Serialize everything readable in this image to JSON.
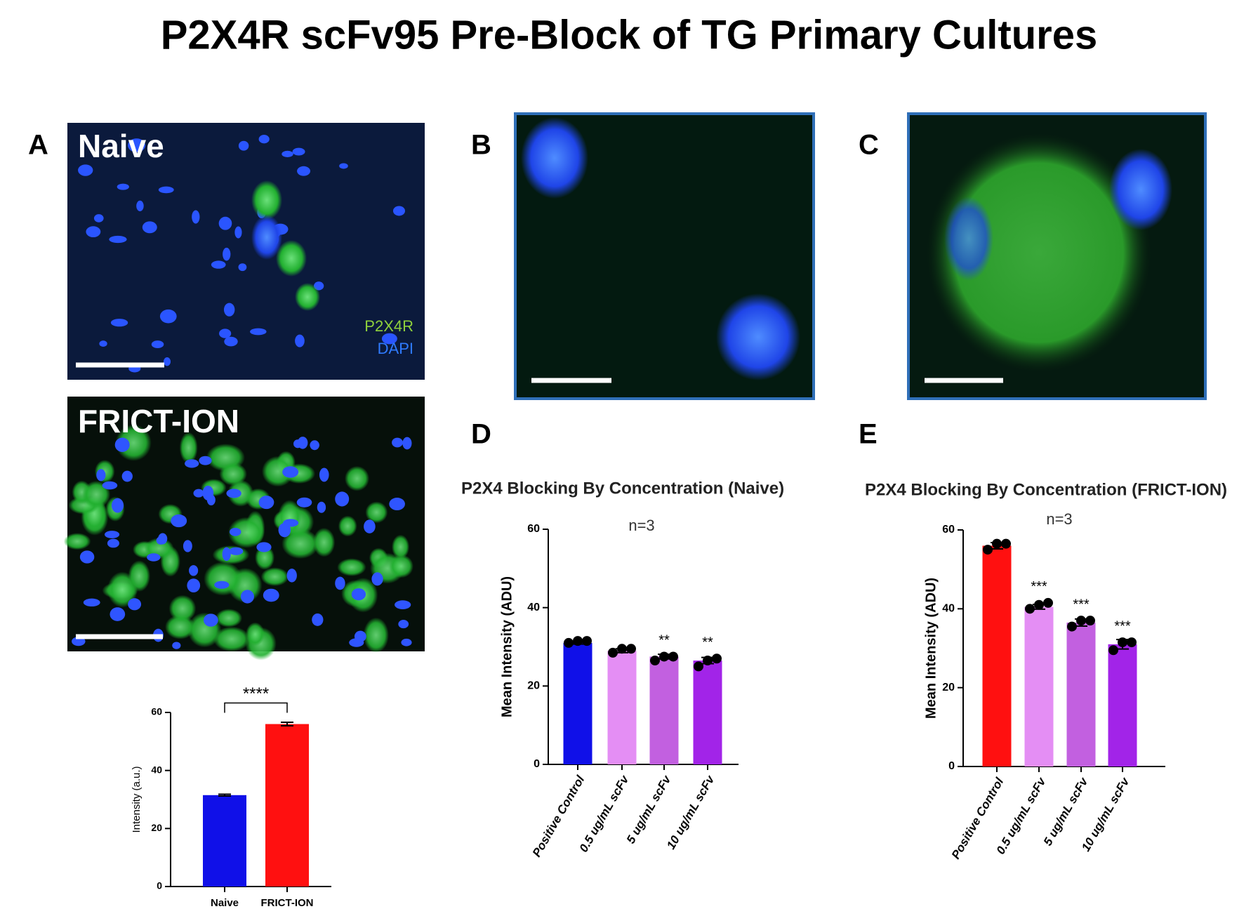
{
  "title": "P2X4R scFv95 Pre-Block of TG Primary Cultures",
  "panel_labels": [
    "A",
    "B",
    "C",
    "D",
    "E"
  ],
  "image_labels": [
    "Naive",
    "FRICT-ION"
  ],
  "stain_labels": [
    {
      "text": "P2X4R",
      "color": "#8fd13c"
    },
    {
      "text": "DAPI",
      "color": "#2f7bff"
    }
  ],
  "chart_data": [
    {
      "type": "bar",
      "ylabel": "Intensity (a.u.)",
      "categories": [
        "Naive",
        "FRICT-ION"
      ],
      "values": [
        31.5,
        56
      ],
      "errors": [
        0.3,
        0.6
      ],
      "colors": [
        "#1010e8",
        "#ff1010"
      ],
      "annotation": "****",
      "ylim": [
        0,
        60
      ],
      "yticks": [
        0,
        20,
        40,
        60
      ]
    },
    {
      "type": "bar",
      "title": "P2X4 Blocking By Concentration (Naive)",
      "subtitle": "n=3",
      "ylabel": "Mean Intensity (ADU)",
      "categories": [
        "Positive Control",
        "0.5 ug/mL scFv",
        "5 ug/mL scFv",
        "10 ug/mL scFv"
      ],
      "values": [
        31,
        29,
        27.5,
        26.5
      ],
      "errors": [
        0.3,
        0.5,
        0.6,
        0.8
      ],
      "points": [
        [
          31,
          31.5,
          31.5
        ],
        [
          28.5,
          29.5,
          29.5
        ],
        [
          26.5,
          27.5,
          27.5
        ],
        [
          25,
          26.5,
          27
        ]
      ],
      "colors": [
        "#1010e8",
        "#e48ef4",
        "#c260e0",
        "#a224e8"
      ],
      "annotations": [
        null,
        null,
        "**",
        "**"
      ],
      "ylim": [
        0,
        60
      ],
      "yticks": [
        0,
        20,
        40,
        60
      ]
    },
    {
      "type": "bar",
      "title": "P2X4 Blocking By Concentration (FRICT-ION)",
      "subtitle": "n=3",
      "ylabel": "Mean Intensity (ADU)",
      "categories": [
        "Positive Control",
        "0.5 ug/mL scFv",
        "5 ug/mL scFv",
        "10 ug/mL scFv"
      ],
      "values": [
        56,
        40.5,
        36.5,
        31
      ],
      "errors": [
        0.8,
        0.6,
        0.9,
        1.2
      ],
      "points": [
        [
          55,
          56.5,
          56.5
        ],
        [
          40,
          41,
          41.5
        ],
        [
          35.5,
          37,
          37
        ],
        [
          29.5,
          31.5,
          31.5
        ]
      ],
      "colors": [
        "#ff1010",
        "#e48ef4",
        "#c260e0",
        "#a224e8"
      ],
      "annotations": [
        null,
        "***",
        "***",
        "***"
      ],
      "ylim": [
        0,
        60
      ],
      "yticks": [
        0,
        20,
        40,
        60
      ]
    }
  ]
}
